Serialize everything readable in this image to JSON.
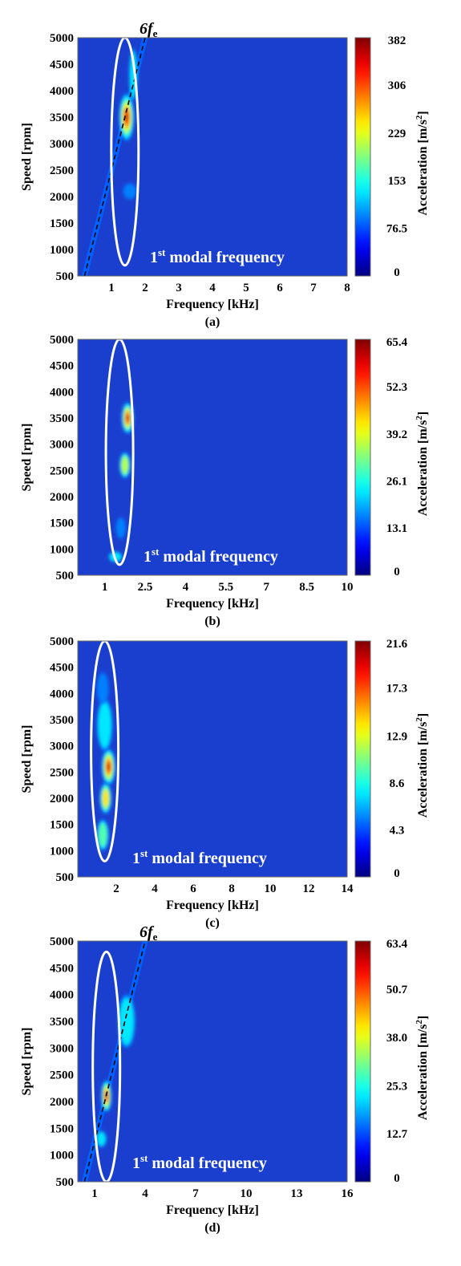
{
  "palette": {
    "background": "#1a3fcf",
    "ellipse": "#ffffff",
    "order_line": "#000000"
  },
  "chart_data": [
    {
      "type": "heatmap",
      "caption": "(a)",
      "xlabel": "Frequency [kHz]",
      "ylabel": "Speed [rpm]",
      "colorbar_label": "Acceleration [m/s^2]",
      "xlim": [
        0,
        8
      ],
      "ylim": [
        500,
        5000
      ],
      "xticks": [
        "1",
        "2",
        "3",
        "4",
        "5",
        "6",
        "7",
        "8"
      ],
      "yticks": [
        "500",
        "1000",
        "1500",
        "2000",
        "2500",
        "3000",
        "3500",
        "4000",
        "4500",
        "5000"
      ],
      "colorbar_ticks": [
        "0",
        "76.5",
        "153",
        "229",
        "306",
        "382"
      ],
      "vmax": 382,
      "annotation": {
        "text": "modal frequency",
        "ordinal": "1",
        "ordinal_suffix": "st"
      },
      "order_line": {
        "label": "6",
        "label_sub": "e",
        "label_italic": "f",
        "kHz_per_1000rpm": 0.4
      },
      "modal_ellipse": {
        "x_kHz": 1.4,
        "rpm_range": [
          700,
          5000
        ]
      },
      "hotspots": [
        {
          "x": 1.45,
          "y": 3500,
          "level": 1.0,
          "sx": 0.22,
          "sy": 450
        },
        {
          "x": 1.65,
          "y": 4300,
          "level": 0.28,
          "sx": 0.12,
          "sy": 500
        },
        {
          "x": 1.55,
          "y": 2100,
          "level": 0.2,
          "sx": 0.2,
          "sy": 150
        }
      ]
    },
    {
      "type": "heatmap",
      "caption": "(b)",
      "xlabel": "Frequency [kHz]",
      "ylabel": "Speed [rpm]",
      "colorbar_label": "Acceleration [m/s^2]",
      "xlim": [
        0,
        10
      ],
      "ylim": [
        500,
        5000
      ],
      "xticks": [
        "1",
        "2.5",
        "4",
        "5.5",
        "7",
        "8.5",
        "10"
      ],
      "yticks": [
        "500",
        "1000",
        "1500",
        "2000",
        "2500",
        "3000",
        "3500",
        "4000",
        "4500",
        "5000"
      ],
      "colorbar_ticks": [
        "0",
        "13.1",
        "26.1",
        "39.2",
        "52.3",
        "65.4"
      ],
      "vmax": 65.4,
      "annotation": {
        "text": "modal frequency",
        "ordinal": "1",
        "ordinal_suffix": "st"
      },
      "modal_ellipse": {
        "x_kHz": 1.55,
        "rpm_range": [
          700,
          5000
        ]
      },
      "hotspots": [
        {
          "x": 1.85,
          "y": 3500,
          "level": 1.0,
          "sx": 0.22,
          "sy": 300
        },
        {
          "x": 1.75,
          "y": 2600,
          "level": 0.55,
          "sx": 0.2,
          "sy": 250
        },
        {
          "x": 1.6,
          "y": 1400,
          "level": 0.2,
          "sx": 0.18,
          "sy": 200
        },
        {
          "x": 1.4,
          "y": 850,
          "level": 0.25,
          "sx": 0.25,
          "sy": 100
        }
      ]
    },
    {
      "type": "heatmap",
      "caption": "(c)",
      "xlabel": "Frequency [kHz]",
      "ylabel": "Speed [rpm]",
      "colorbar_label": "Acceleration [m/s^2]",
      "xlim": [
        0,
        14
      ],
      "ylim": [
        500,
        5000
      ],
      "xticks": [
        "2",
        "4",
        "6",
        "8",
        "10",
        "12",
        "14"
      ],
      "yticks": [
        "500",
        "1000",
        "1500",
        "2000",
        "2500",
        "3000",
        "3500",
        "4000",
        "4500",
        "5000"
      ],
      "colorbar_ticks": [
        "0",
        "4.3",
        "8.6",
        "12.9",
        "17.3",
        "21.6"
      ],
      "vmax": 21.6,
      "annotation": {
        "text": "modal frequency",
        "ordinal": "1",
        "ordinal_suffix": "st"
      },
      "modal_ellipse": {
        "x_kHz": 1.4,
        "rpm_range": [
          800,
          5000
        ]
      },
      "hotspots": [
        {
          "x": 1.6,
          "y": 2600,
          "level": 1.0,
          "sx": 0.35,
          "sy": 350
        },
        {
          "x": 1.45,
          "y": 2000,
          "level": 0.65,
          "sx": 0.3,
          "sy": 300
        },
        {
          "x": 1.3,
          "y": 1300,
          "level": 0.45,
          "sx": 0.3,
          "sy": 300
        },
        {
          "x": 1.4,
          "y": 3400,
          "level": 0.3,
          "sx": 0.4,
          "sy": 500
        },
        {
          "x": 1.3,
          "y": 4100,
          "level": 0.2,
          "sx": 0.3,
          "sy": 300
        }
      ]
    },
    {
      "type": "heatmap",
      "caption": "(d)",
      "xlabel": "Frequency [kHz]",
      "ylabel": "Speed [rpm]",
      "colorbar_label": "Acceleration [m/s^2]",
      "xlim": [
        0,
        16
      ],
      "ylim": [
        500,
        5000
      ],
      "xticks": [
        "1",
        "4",
        "7",
        "10",
        "13",
        "16"
      ],
      "yticks": [
        "500",
        "1000",
        "1500",
        "2000",
        "2500",
        "3000",
        "3500",
        "4000",
        "4500",
        "5000"
      ],
      "colorbar_ticks": [
        "0",
        "12.7",
        "25.3",
        "38.0",
        "50.7",
        "63.4"
      ],
      "vmax": 63.4,
      "annotation": {
        "text": "modal frequency",
        "ordinal": "1",
        "ordinal_suffix": "st"
      },
      "order_line": {
        "label": "6",
        "label_sub": "e",
        "label_italic": "f",
        "kHz_per_1000rpm": 0.8
      },
      "modal_ellipse": {
        "x_kHz": 1.7,
        "rpm_range": [
          500,
          4800
        ]
      },
      "hotspots": [
        {
          "x": 1.7,
          "y": 2100,
          "level": 1.0,
          "sx": 0.3,
          "sy": 300
        },
        {
          "x": 2.9,
          "y": 3500,
          "level": 0.25,
          "sx": 0.5,
          "sy": 500
        },
        {
          "x": 1.4,
          "y": 1300,
          "level": 0.3,
          "sx": 0.3,
          "sy": 150
        }
      ]
    }
  ]
}
